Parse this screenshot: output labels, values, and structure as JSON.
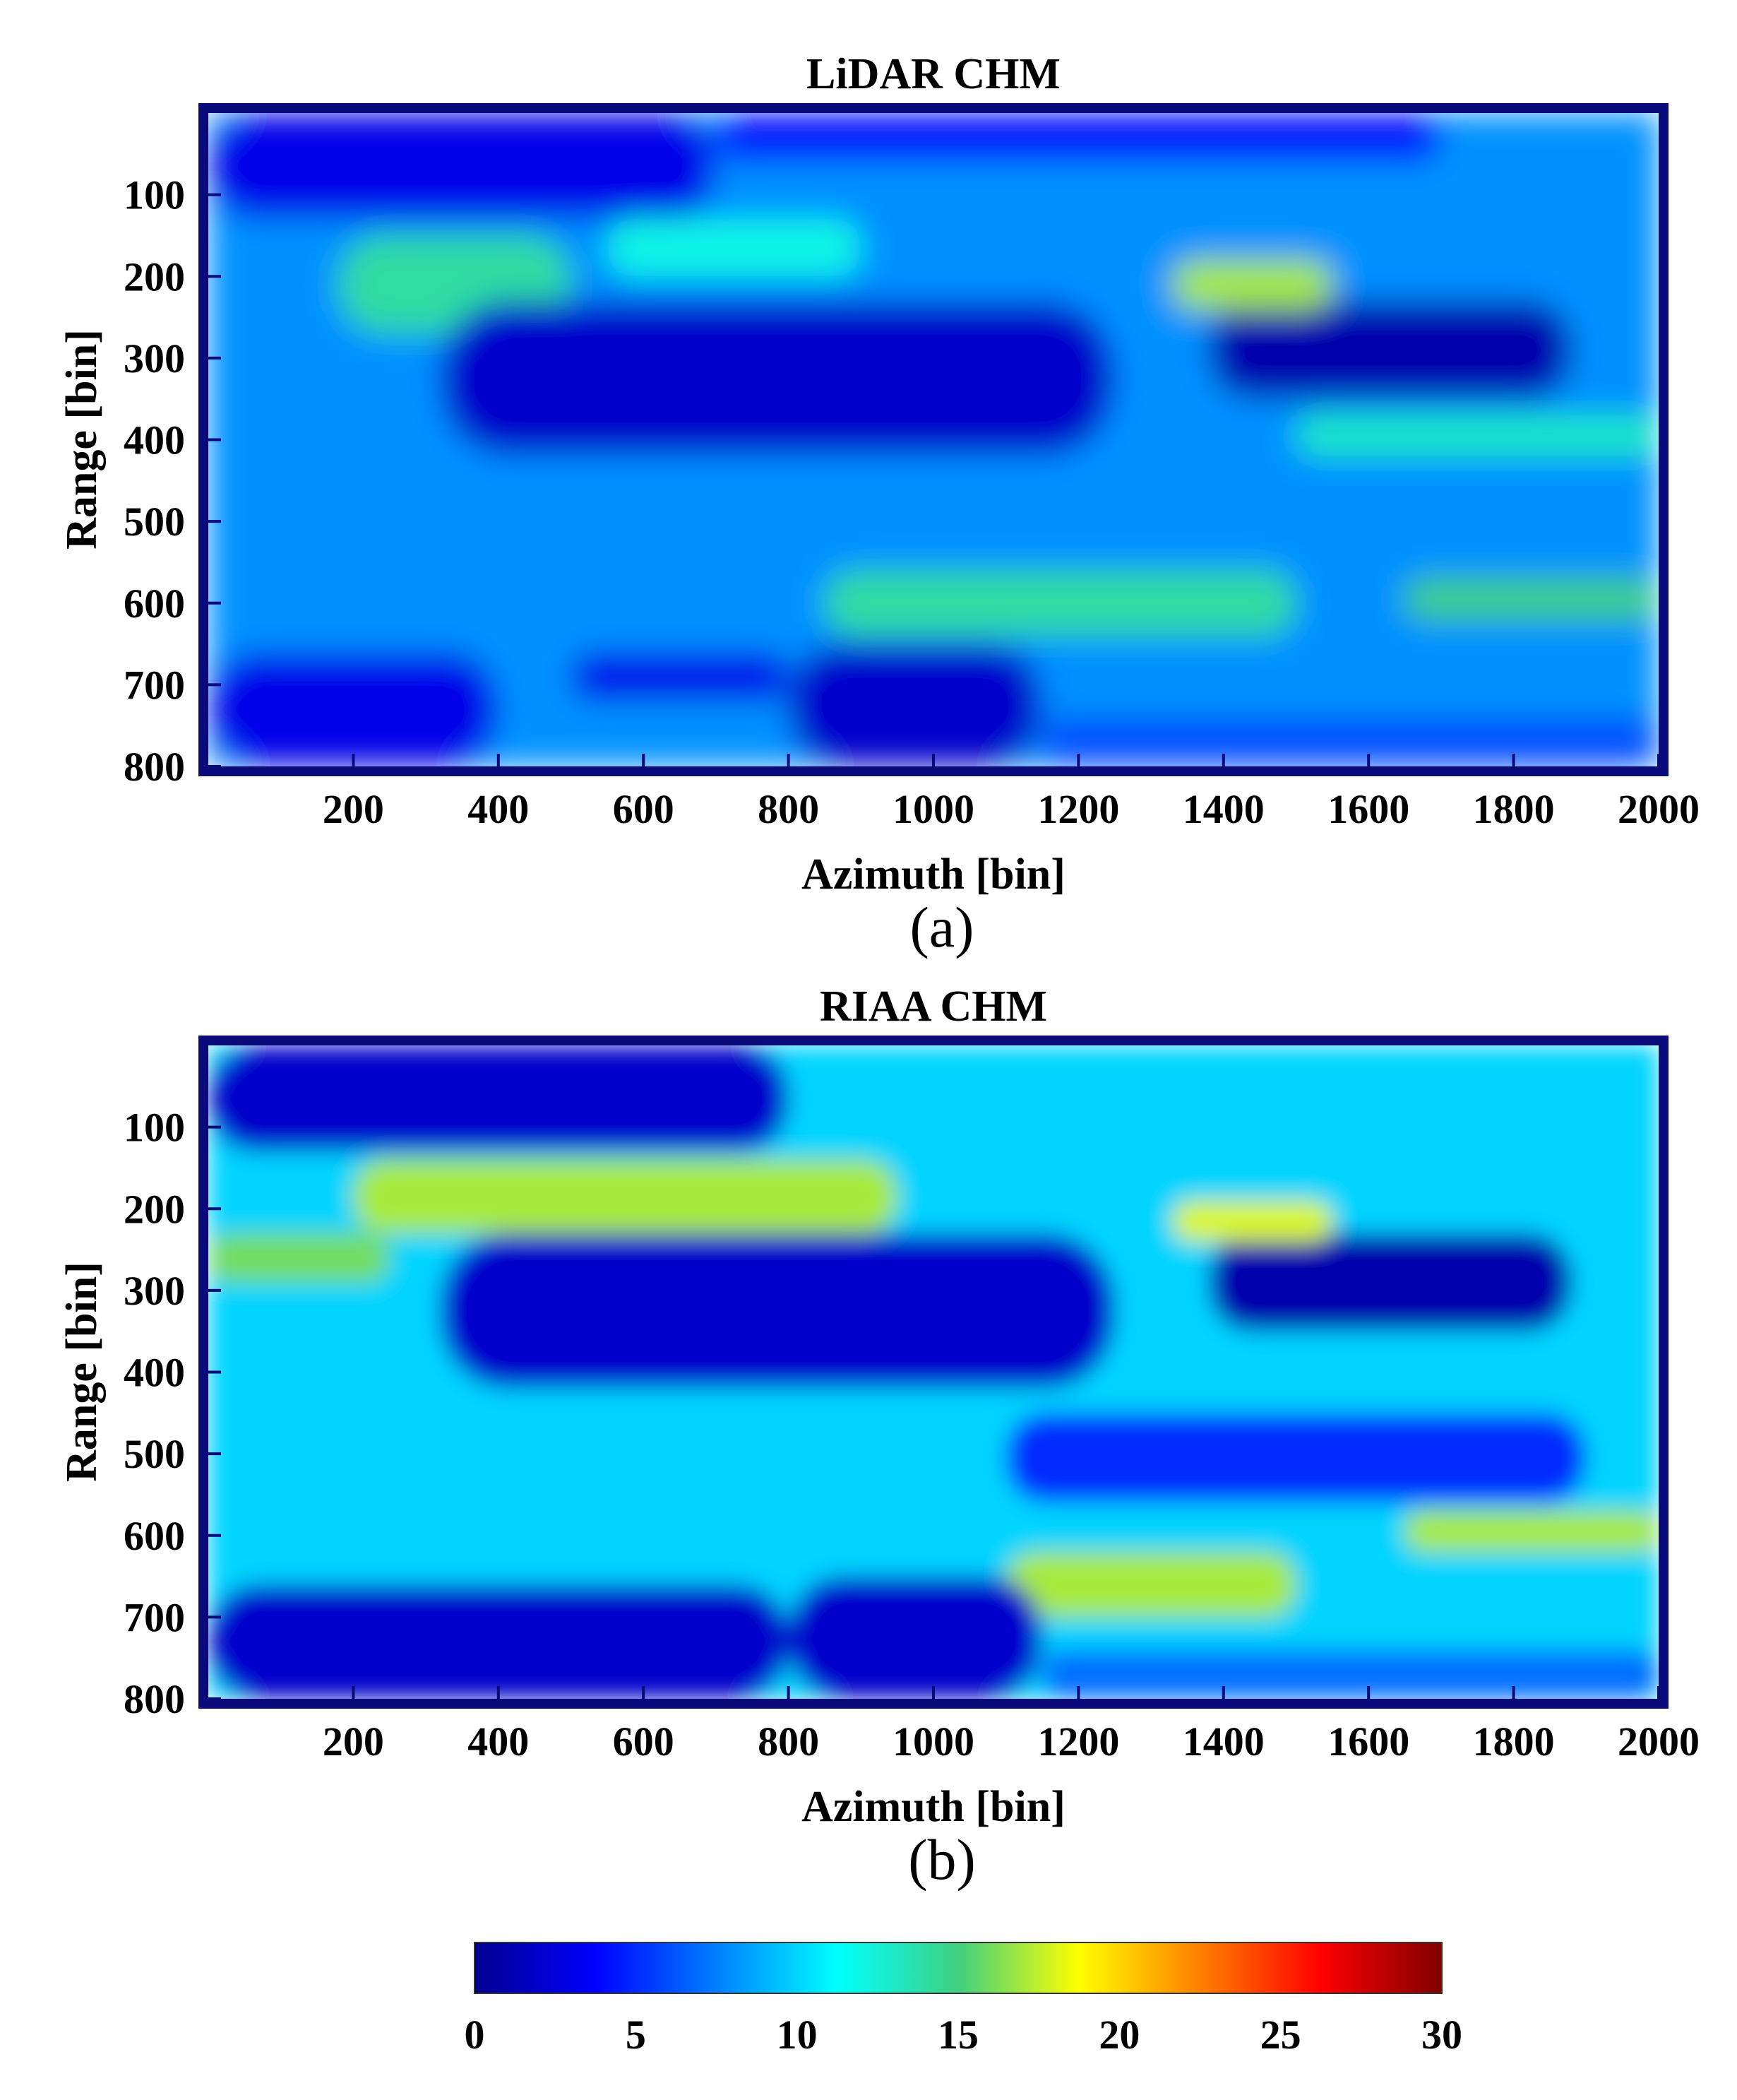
{
  "chart_data": [
    {
      "type": "heatmap",
      "title": "LiDAR CHM",
      "xlabel": "Azimuth [bin]",
      "ylabel": "Range [bin]",
      "caption": "(a)",
      "xlim": [
        0,
        2000
      ],
      "ylim": [
        0,
        800
      ],
      "y_reversed": true,
      "xticks": [
        200,
        400,
        600,
        800,
        1000,
        1200,
        1400,
        1600,
        1800,
        2000
      ],
      "yticks": [
        100,
        200,
        300,
        400,
        500,
        600,
        700,
        800
      ],
      "color_range": [
        0,
        30
      ],
      "colormap": "jet",
      "regions": [
        {
          "x": [
            0,
            2000
          ],
          "y": [
            0,
            800
          ],
          "value": 8
        },
        {
          "x": [
            0,
            700
          ],
          "y": [
            0,
            130
          ],
          "value": 3
        },
        {
          "x": [
            700,
            1700
          ],
          "y": [
            0,
            60
          ],
          "value": 4
        },
        {
          "x": [
            180,
            500
          ],
          "y": [
            150,
            270
          ],
          "value": 14
        },
        {
          "x": [
            550,
            900
          ],
          "y": [
            130,
            200
          ],
          "value": 12
        },
        {
          "x": [
            320,
            1250
          ],
          "y": [
            230,
            420
          ],
          "value": 2
        },
        {
          "x": [
            1380,
            1880
          ],
          "y": [
            230,
            350
          ],
          "value": 1
        },
        {
          "x": [
            1330,
            1550
          ],
          "y": [
            180,
            240
          ],
          "value": 17
        },
        {
          "x": [
            1500,
            2000
          ],
          "y": [
            370,
            420
          ],
          "value": 13
        },
        {
          "x": [
            850,
            1500
          ],
          "y": [
            560,
            640
          ],
          "value": 14
        },
        {
          "x": [
            1650,
            2000
          ],
          "y": [
            570,
            620
          ],
          "value": 15
        },
        {
          "x": [
            800,
            1150
          ],
          "y": [
            650,
            800
          ],
          "value": 2
        },
        {
          "x": [
            0,
            400
          ],
          "y": [
            660,
            800
          ],
          "value": 3
        },
        {
          "x": [
            500,
            800
          ],
          "y": [
            660,
            720
          ],
          "value": 3
        },
        {
          "x": [
            1150,
            2000
          ],
          "y": [
            740,
            800
          ],
          "value": 6
        }
      ]
    },
    {
      "type": "heatmap",
      "title": "RIAA CHM",
      "xlabel": "Azimuth [bin]",
      "ylabel": "Range [bin]",
      "caption": "(b)",
      "xlim": [
        0,
        2000
      ],
      "ylim": [
        0,
        800
      ],
      "y_reversed": true,
      "xticks": [
        200,
        400,
        600,
        800,
        1000,
        1200,
        1400,
        1600,
        1800,
        2000
      ],
      "yticks": [
        100,
        200,
        300,
        400,
        500,
        600,
        700,
        800
      ],
      "color_range": [
        0,
        30
      ],
      "colormap": "jet",
      "regions": [
        {
          "x": [
            0,
            2000
          ],
          "y": [
            0,
            800
          ],
          "value": 10
        },
        {
          "x": [
            0,
            800
          ],
          "y": [
            0,
            130
          ],
          "value": 2
        },
        {
          "x": [
            200,
            950
          ],
          "y": [
            140,
            230
          ],
          "value": 17
        },
        {
          "x": [
            0,
            250
          ],
          "y": [
            230,
            290
          ],
          "value": 16
        },
        {
          "x": [
            320,
            1250
          ],
          "y": [
            230,
            420
          ],
          "value": 2
        },
        {
          "x": [
            1380,
            1880
          ],
          "y": [
            230,
            350
          ],
          "value": 1
        },
        {
          "x": [
            1330,
            1550
          ],
          "y": [
            190,
            240
          ],
          "value": 18
        },
        {
          "x": [
            1100,
            1900
          ],
          "y": [
            450,
            560
          ],
          "value": 5
        },
        {
          "x": [
            1100,
            1500
          ],
          "y": [
            620,
            700
          ],
          "value": 17
        },
        {
          "x": [
            1650,
            2000
          ],
          "y": [
            570,
            620
          ],
          "value": 17
        },
        {
          "x": [
            800,
            1150
          ],
          "y": [
            650,
            800
          ],
          "value": 2
        },
        {
          "x": [
            0,
            800
          ],
          "y": [
            660,
            800
          ],
          "value": 2
        },
        {
          "x": [
            1150,
            2000
          ],
          "y": [
            740,
            800
          ],
          "value": 7
        }
      ]
    },
    {
      "type": "colorbar",
      "colormap": "jet",
      "range": [
        0,
        30
      ],
      "ticks": [
        "0",
        "5",
        "10",
        "15",
        "20",
        "25",
        "30"
      ]
    }
  ]
}
